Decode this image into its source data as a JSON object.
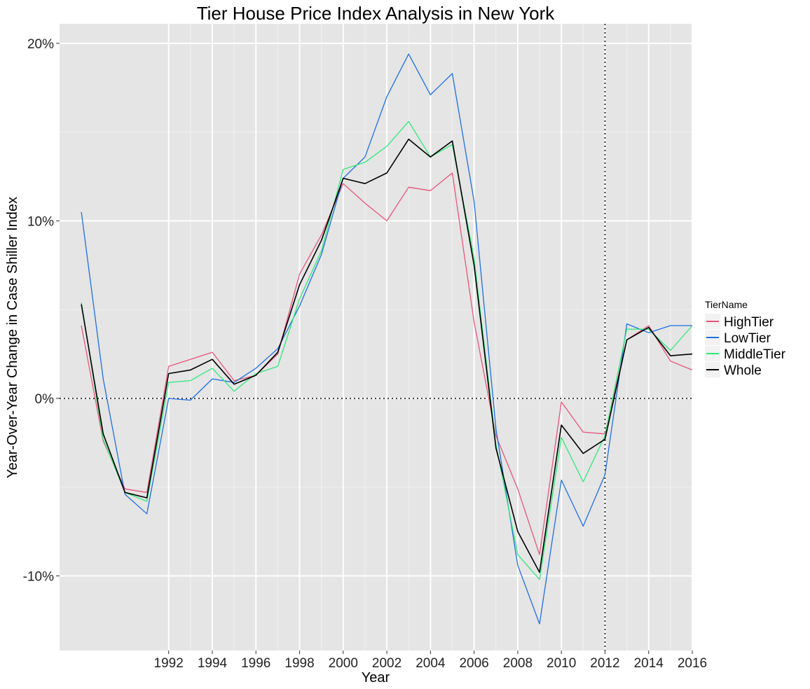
{
  "chart_data": {
    "type": "line",
    "title": "Tier House Price Index Analysis in  New York",
    "xlabel": "Year",
    "ylabel": "Year-Over-Year Change in Case Shiller Index",
    "xlim": [
      1987.0,
      2016
    ],
    "ylim": [
      -14.2,
      21.1
    ],
    "x_ticks": [
      1992,
      1994,
      1996,
      1998,
      2000,
      2002,
      2004,
      2006,
      2008,
      2010,
      2012,
      2014,
      2016
    ],
    "y_ticks": [
      20,
      10,
      0,
      -10
    ],
    "y_tick_labels": [
      "20%",
      "10%",
      "0%",
      "-10%"
    ],
    "reference_lines": {
      "hline": 0,
      "vline": 2012,
      "style": "dotted"
    },
    "grid": true,
    "legend": {
      "title": "TierName",
      "position": "right"
    },
    "x": [
      1988,
      1989,
      1990,
      1991,
      1992,
      1993,
      1994,
      1995,
      1996,
      1997,
      1998,
      1999,
      2000,
      2001,
      2002,
      2003,
      2004,
      2005,
      2006,
      2007,
      2008,
      2009,
      2010,
      2011,
      2012,
      2013,
      2014,
      2015,
      2016
    ],
    "series": [
      {
        "name": "HighTier",
        "color": "#e7557a",
        "values": [
          4.1,
          -2.4,
          -5.1,
          -5.3,
          1.8,
          2.2,
          2.6,
          1.0,
          1.3,
          2.5,
          7.0,
          9.2,
          12.1,
          11.0,
          10.0,
          11.9,
          11.7,
          12.7,
          4.3,
          -2.1,
          -5.1,
          -8.8,
          -0.2,
          -1.9,
          -2.0,
          3.3,
          4.1,
          2.1,
          1.6
        ]
      },
      {
        "name": "LowTier",
        "color": "#1f6fe0",
        "values": [
          10.5,
          1.1,
          -5.4,
          -6.5,
          0.0,
          -0.1,
          1.1,
          0.9,
          1.7,
          2.8,
          5.2,
          8.1,
          12.4,
          13.6,
          17.0,
          19.4,
          17.1,
          18.3,
          11.1,
          -1.7,
          -9.4,
          -12.7,
          -4.6,
          -7.2,
          -4.3,
          4.2,
          3.7,
          4.1,
          4.1
        ]
      },
      {
        "name": "MiddleTier",
        "color": "#31e87a",
        "values": [
          5.4,
          -2.3,
          -5.3,
          -5.8,
          0.9,
          1.0,
          1.7,
          0.4,
          1.4,
          1.8,
          5.6,
          8.3,
          12.9,
          13.3,
          14.2,
          15.6,
          13.6,
          14.3,
          7.9,
          -2.6,
          -8.8,
          -10.2,
          -2.2,
          -4.7,
          -2.1,
          3.9,
          3.9,
          2.7,
          4.1
        ]
      },
      {
        "name": "Whole",
        "color": "#000000",
        "values": [
          5.3,
          -2.0,
          -5.3,
          -5.6,
          1.4,
          1.6,
          2.2,
          0.8,
          1.3,
          2.6,
          6.4,
          8.9,
          12.4,
          12.1,
          12.7,
          14.6,
          13.6,
          14.5,
          7.5,
          -2.8,
          -7.5,
          -9.8,
          -1.5,
          -3.1,
          -2.3,
          3.3,
          4.0,
          2.4,
          2.5
        ]
      }
    ]
  }
}
